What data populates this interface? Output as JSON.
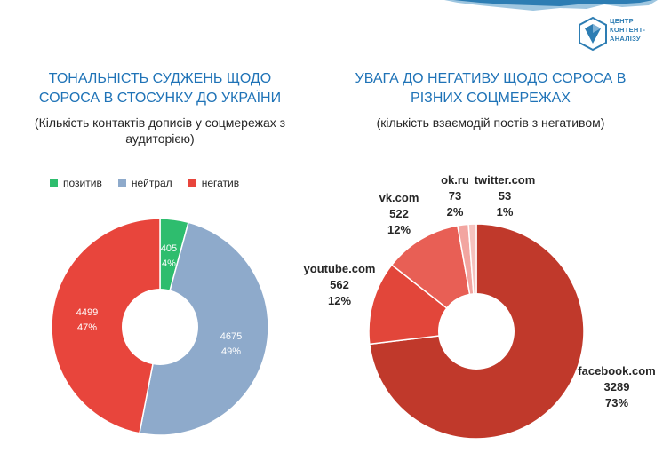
{
  "logo": {
    "line1": "ЦЕНТР",
    "line2": "КОНТЕНТ-",
    "line3": "АНАЛІЗУ"
  },
  "colors": {
    "title_blue": "#1f73b7",
    "positive": "#2ebd6e",
    "neutral": "#8eaacb",
    "negative": "#e8453c",
    "facebook": "#c0392b",
    "youtube": "#e2463a",
    "vk": "#e85f55",
    "okru": "#f2a5a0",
    "twitter": "#f6c2be"
  },
  "chart_data": [
    {
      "type": "pie",
      "title": "ТОНАЛЬНІСТЬ СУДЖЕНЬ ЩОДО СОРОСА В СТОСУНКУ ДО УКРАЇНИ",
      "subtitle": "(Кількість контактів дописів у соцмережах з аудиторією)",
      "donut": true,
      "legend_position": "top",
      "categories": [
        "позитив",
        "нейтрал",
        "негатив"
      ],
      "values": [
        405,
        4675,
        4499
      ],
      "percent_labels": [
        "4%",
        "49%",
        "47%"
      ],
      "value_labels": [
        "405",
        "4675",
        "4499"
      ],
      "start_angle_deg": 0,
      "direction": "clockwise"
    },
    {
      "type": "pie",
      "title": "УВАГА ДО НЕГАТИВУ ЩОДО СОРОСА В РІЗНИХ СОЦМЕРЕЖАХ",
      "subtitle": "(кількість взаємодій постів з негативом)",
      "donut": true,
      "categories": [
        "facebook.com",
        "youtube.com",
        "vk.com",
        "ok.ru",
        "twitter.com"
      ],
      "values": [
        3289,
        562,
        522,
        73,
        53
      ],
      "percent_labels": [
        "73%",
        "12%",
        "12%",
        "2%",
        "1%"
      ],
      "value_labels": [
        "3289",
        "562",
        "522",
        "73",
        "53"
      ],
      "start_angle_deg": 0,
      "direction": "clockwise"
    }
  ]
}
